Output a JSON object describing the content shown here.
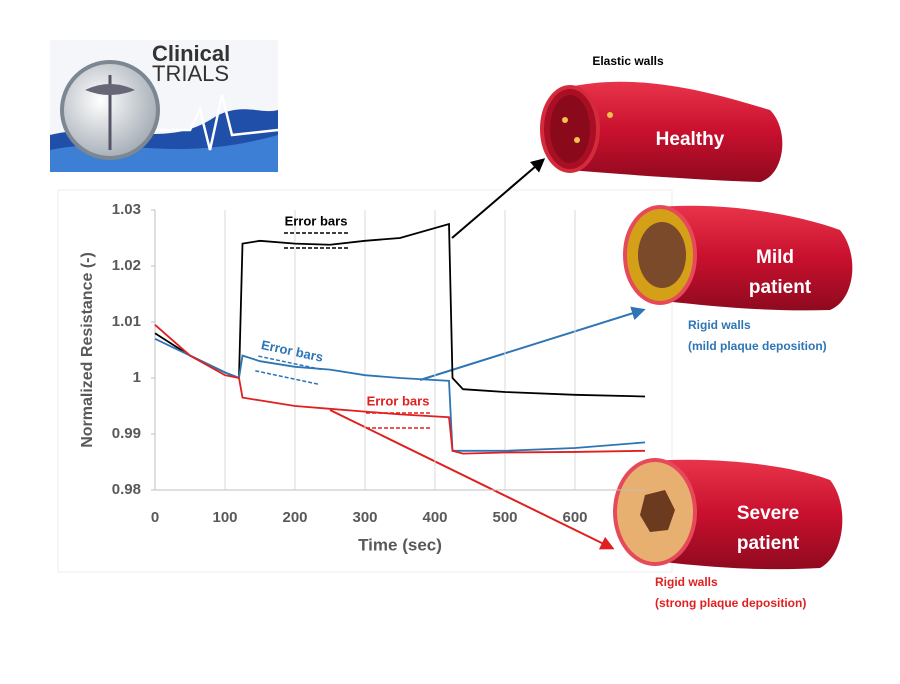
{
  "chart_data": {
    "type": "line",
    "xlabel": "Time (sec)",
    "ylabel": "Normalized Resistance (-)",
    "x": [
      0,
      50,
      100,
      120,
      125,
      150,
      200,
      250,
      300,
      350,
      420,
      425,
      440,
      500,
      600,
      700
    ],
    "series": [
      {
        "name": "Healthy",
        "color": "#000000",
        "values": [
          1.008,
          1.004,
          1.001,
          1.0,
          1.024,
          1.0245,
          1.024,
          1.0238,
          1.0245,
          1.025,
          1.0275,
          1.0,
          0.998,
          0.9975,
          0.997,
          0.9967
        ]
      },
      {
        "name": "Mild patient",
        "color": "#2e75b6",
        "values": [
          1.007,
          1.004,
          1.001,
          1.0,
          1.004,
          1.003,
          1.002,
          1.0015,
          1.0005,
          1.0,
          0.9995,
          0.987,
          0.987,
          0.987,
          0.9875,
          0.9885
        ]
      },
      {
        "name": "Severe patient",
        "color": "#e02020",
        "values": [
          1.0095,
          1.004,
          1.0005,
          1.0,
          0.9965,
          0.996,
          0.995,
          0.9945,
          0.994,
          0.9935,
          0.993,
          0.987,
          0.9865,
          0.9867,
          0.9868,
          0.987
        ]
      }
    ],
    "xlim": [
      0,
      700
    ],
    "xticks": [
      0,
      100,
      200,
      300,
      400,
      500,
      600
    ],
    "ylim": [
      0.98,
      1.03
    ],
    "yticks": [
      0.98,
      0.99,
      1,
      1.01,
      1.02,
      1.03
    ],
    "grid": true,
    "annotations": [
      {
        "text": "Error bars",
        "color": "#000000"
      },
      {
        "text": "Error bars",
        "color": "#2e75b6"
      },
      {
        "text": "Error bars",
        "color": "#e02020"
      }
    ]
  },
  "logo": {
    "line1": "Clinical",
    "line2": "TRIALS"
  },
  "illustration": {
    "healthy": {
      "label": "Healthy",
      "caption": "Elastic walls"
    },
    "mild": {
      "label": [
        "Mild",
        "patient"
      ],
      "caption": [
        "Rigid walls",
        "(mild plaque deposition)"
      ]
    },
    "severe": {
      "label": [
        "Severe",
        "patient"
      ],
      "caption": [
        "Rigid walls",
        "(strong plaque deposition)"
      ]
    }
  }
}
